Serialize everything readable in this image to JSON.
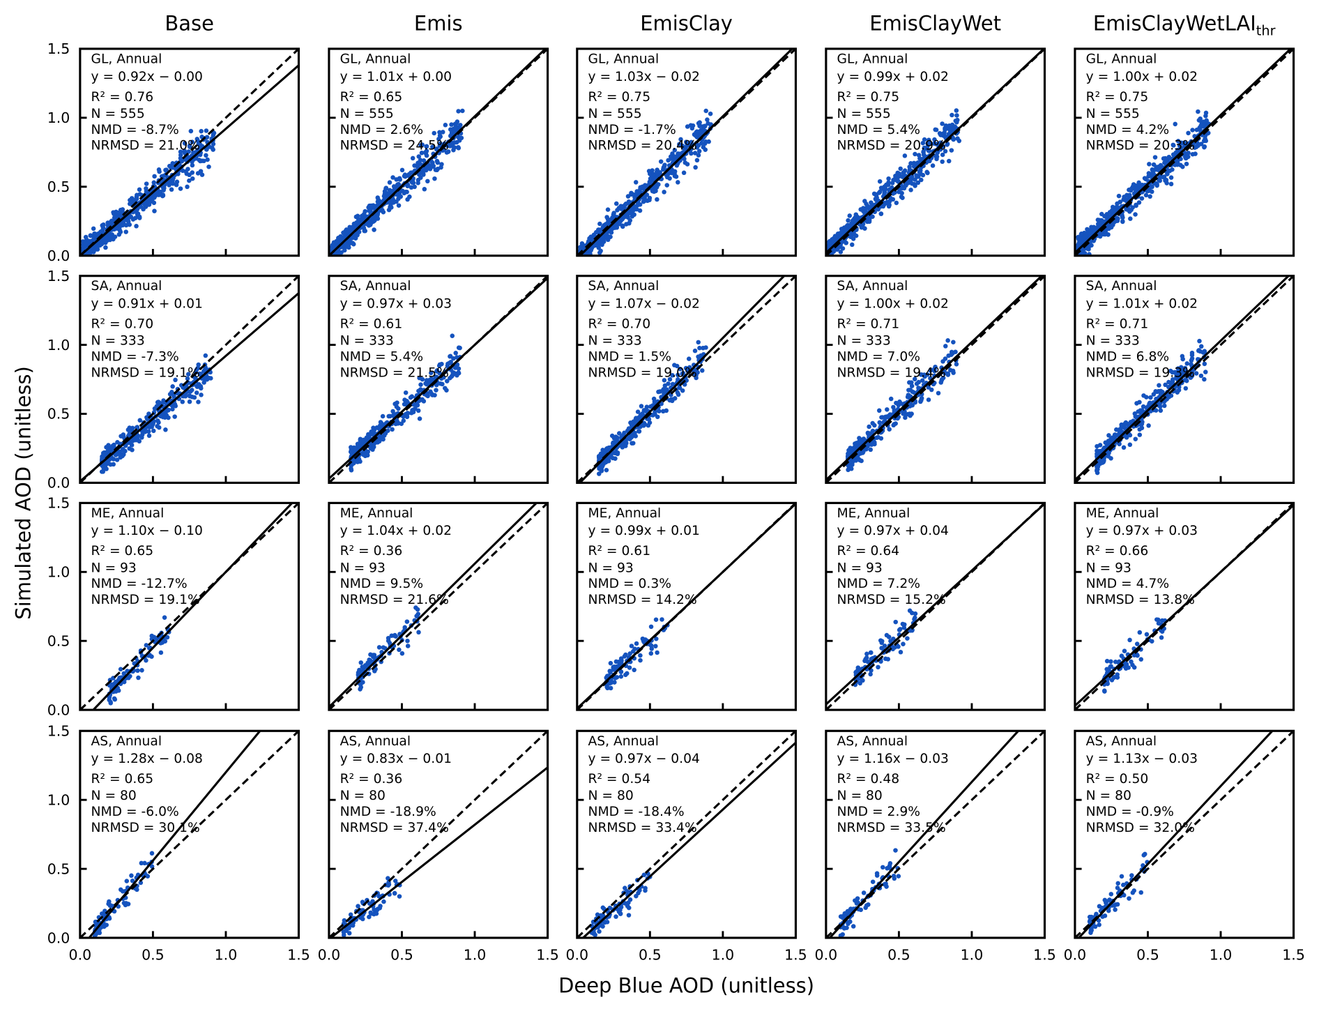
{
  "chart_data": {
    "type": "scatter",
    "layout": "grid 4 rows x 5 columns",
    "columns": [
      "Base",
      "Emis",
      "EmisClay",
      "EmisClayWet",
      "EmisClayWetLAI_thr"
    ],
    "column_titles": [
      {
        "main": "Base",
        "sub": ""
      },
      {
        "main": "Emis",
        "sub": ""
      },
      {
        "main": "EmisClay",
        "sub": ""
      },
      {
        "main": "EmisClayWet",
        "sub": ""
      },
      {
        "main": "EmisClayWetLAI",
        "sub": "thr"
      }
    ],
    "xlabel": "Deep Blue AOD (unitless)",
    "ylabel": "Simulated AOD (unitless)",
    "xlim": [
      0,
      1.5
    ],
    "ylim": [
      0,
      1.5
    ],
    "ticks": [
      "0.0",
      "0.5",
      "1.0",
      "1.5"
    ],
    "grid": false,
    "point_color": "#1553be",
    "reference_line": "1:1 dashed",
    "fit_line": "solid",
    "rows": [
      {
        "region": "GL",
        "label": "GL, Annual",
        "N": 555,
        "x_extent": [
          0.02,
          0.92
        ],
        "panels": [
          {
            "slope": 0.92,
            "intercept": -0.0,
            "equation": "y = 0.92x − 0.00",
            "r2": "R² = 0.76",
            "n": "N = 555",
            "nmd": "NMD = -8.7%",
            "nrmsd": "NRMSD = 21.0%"
          },
          {
            "slope": 1.01,
            "intercept": 0.0,
            "equation": "y = 1.01x + 0.00",
            "r2": "R² = 0.65",
            "n": "N = 555",
            "nmd": "NMD = 2.6%",
            "nrmsd": "NRMSD = 24.5%"
          },
          {
            "slope": 1.03,
            "intercept": -0.02,
            "equation": "y = 1.03x − 0.02",
            "r2": "R² = 0.75",
            "n": "N = 555",
            "nmd": "NMD = -1.7%",
            "nrmsd": "NRMSD = 20.4%"
          },
          {
            "slope": 0.99,
            "intercept": 0.02,
            "equation": "y = 0.99x + 0.02",
            "r2": "R² = 0.75",
            "n": "N = 555",
            "nmd": "NMD = 5.4%",
            "nrmsd": "NRMSD = 20.9%"
          },
          {
            "slope": 1.0,
            "intercept": 0.02,
            "equation": "y = 1.00x + 0.02",
            "r2": "R² = 0.75",
            "n": "N = 555",
            "nmd": "NMD = 4.2%",
            "nrmsd": "NRMSD = 20.3%"
          }
        ]
      },
      {
        "region": "SA",
        "label": "SA, Annual",
        "N": 333,
        "x_extent": [
          0.15,
          0.9
        ],
        "panels": [
          {
            "slope": 0.91,
            "intercept": 0.01,
            "equation": "y = 0.91x + 0.01",
            "r2": "R² = 0.70",
            "n": "N = 333",
            "nmd": "NMD = -7.3%",
            "nrmsd": "NRMSD = 19.1%"
          },
          {
            "slope": 0.97,
            "intercept": 0.03,
            "equation": "y = 0.97x + 0.03",
            "r2": "R² = 0.61",
            "n": "N = 333",
            "nmd": "NMD = 5.4%",
            "nrmsd": "NRMSD = 21.5%"
          },
          {
            "slope": 1.07,
            "intercept": -0.02,
            "equation": "y = 1.07x − 0.02",
            "r2": "R² = 0.70",
            "n": "N = 333",
            "nmd": "NMD = 1.5%",
            "nrmsd": "NRMSD = 19.0%"
          },
          {
            "slope": 1.0,
            "intercept": 0.02,
            "equation": "y = 1.00x + 0.02",
            "r2": "R² = 0.71",
            "n": "N = 333",
            "nmd": "NMD = 7.0%",
            "nrmsd": "NRMSD = 19.4%"
          },
          {
            "slope": 1.01,
            "intercept": 0.02,
            "equation": "y = 1.01x + 0.02",
            "r2": "R² = 0.71",
            "n": "N = 333",
            "nmd": "NMD = 6.8%",
            "nrmsd": "NRMSD = 19.3%"
          }
        ]
      },
      {
        "region": "ME",
        "label": "ME, Annual",
        "N": 93,
        "x_extent": [
          0.2,
          0.62
        ],
        "panels": [
          {
            "slope": 1.1,
            "intercept": -0.1,
            "equation": "y = 1.10x − 0.10",
            "r2": "R² = 0.65",
            "n": "N = 93",
            "nmd": "NMD = -12.7%",
            "nrmsd": "NRMSD = 19.1%"
          },
          {
            "slope": 1.04,
            "intercept": 0.02,
            "equation": "y = 1.04x + 0.02",
            "r2": "R² = 0.36",
            "n": "N = 93",
            "nmd": "NMD = 9.5%",
            "nrmsd": "NRMSD = 21.6%"
          },
          {
            "slope": 0.99,
            "intercept": 0.01,
            "equation": "y = 0.99x + 0.01",
            "r2": "R² = 0.61",
            "n": "N = 93",
            "nmd": "NMD = 0.3%",
            "nrmsd": "NRMSD = 14.2%"
          },
          {
            "slope": 0.97,
            "intercept": 0.04,
            "equation": "y = 0.97x + 0.04",
            "r2": "R² = 0.64",
            "n": "N = 93",
            "nmd": "NMD = 7.2%",
            "nrmsd": "NRMSD = 15.2%"
          },
          {
            "slope": 0.97,
            "intercept": 0.03,
            "equation": "y = 0.97x + 0.03",
            "r2": "R² = 0.66",
            "n": "N = 93",
            "nmd": "NMD = 4.7%",
            "nrmsd": "NRMSD = 13.8%"
          }
        ]
      },
      {
        "region": "AS",
        "label": "AS, Annual",
        "N": 80,
        "x_extent": [
          0.1,
          0.5
        ],
        "panels": [
          {
            "slope": 1.28,
            "intercept": -0.08,
            "equation": "y = 1.28x − 0.08",
            "r2": "R² = 0.65",
            "n": "N = 80",
            "nmd": "NMD = -6.0%",
            "nrmsd": "NRMSD = 30.1%"
          },
          {
            "slope": 0.83,
            "intercept": -0.01,
            "equation": "y = 0.83x − 0.01",
            "r2": "R² = 0.36",
            "n": "N = 80",
            "nmd": "NMD = -18.9%",
            "nrmsd": "NRMSD = 37.4%"
          },
          {
            "slope": 0.97,
            "intercept": -0.04,
            "equation": "y = 0.97x − 0.04",
            "r2": "R² = 0.54",
            "n": "N = 80",
            "nmd": "NMD = -18.4%",
            "nrmsd": "NRMSD = 33.4%"
          },
          {
            "slope": 1.16,
            "intercept": -0.03,
            "equation": "y = 1.16x − 0.03",
            "r2": "R² = 0.48",
            "n": "N = 80",
            "nmd": "NMD = 2.9%",
            "nrmsd": "NRMSD = 33.5%"
          },
          {
            "slope": 1.13,
            "intercept": -0.03,
            "equation": "y = 1.13x − 0.03",
            "r2": "R² = 0.50",
            "n": "N = 80",
            "nmd": "NMD = -0.9%",
            "nrmsd": "NRMSD = 32.0%"
          }
        ]
      }
    ]
  }
}
